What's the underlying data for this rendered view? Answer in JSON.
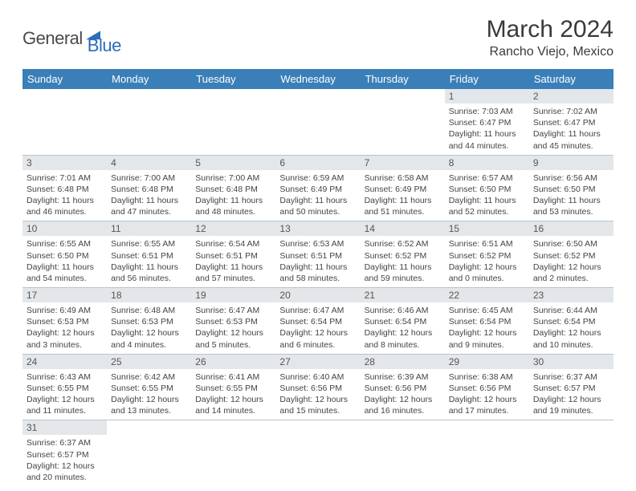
{
  "logo": {
    "word1": "General",
    "word2": "Blue"
  },
  "title": "March 2024",
  "location": "Rancho Viejo, Mexico",
  "colors": {
    "header_bg": "#3b7fb9",
    "header_text": "#ffffff",
    "daynum_bg": "#e4e7ea",
    "row_border": "#b8c4d0",
    "text": "#444444",
    "title_text": "#3a3a3a",
    "logo_dark": "#4a4a4a",
    "logo_blue": "#2a6db8"
  },
  "weekdays": [
    "Sunday",
    "Monday",
    "Tuesday",
    "Wednesday",
    "Thursday",
    "Friday",
    "Saturday"
  ],
  "weeks": [
    [
      null,
      null,
      null,
      null,
      null,
      {
        "d": "1",
        "sr": "7:03 AM",
        "ss": "6:47 PM",
        "dl": "11 hours and 44 minutes."
      },
      {
        "d": "2",
        "sr": "7:02 AM",
        "ss": "6:47 PM",
        "dl": "11 hours and 45 minutes."
      }
    ],
    [
      {
        "d": "3",
        "sr": "7:01 AM",
        "ss": "6:48 PM",
        "dl": "11 hours and 46 minutes."
      },
      {
        "d": "4",
        "sr": "7:00 AM",
        "ss": "6:48 PM",
        "dl": "11 hours and 47 minutes."
      },
      {
        "d": "5",
        "sr": "7:00 AM",
        "ss": "6:48 PM",
        "dl": "11 hours and 48 minutes."
      },
      {
        "d": "6",
        "sr": "6:59 AM",
        "ss": "6:49 PM",
        "dl": "11 hours and 50 minutes."
      },
      {
        "d": "7",
        "sr": "6:58 AM",
        "ss": "6:49 PM",
        "dl": "11 hours and 51 minutes."
      },
      {
        "d": "8",
        "sr": "6:57 AM",
        "ss": "6:50 PM",
        "dl": "11 hours and 52 minutes."
      },
      {
        "d": "9",
        "sr": "6:56 AM",
        "ss": "6:50 PM",
        "dl": "11 hours and 53 minutes."
      }
    ],
    [
      {
        "d": "10",
        "sr": "6:55 AM",
        "ss": "6:50 PM",
        "dl": "11 hours and 54 minutes."
      },
      {
        "d": "11",
        "sr": "6:55 AM",
        "ss": "6:51 PM",
        "dl": "11 hours and 56 minutes."
      },
      {
        "d": "12",
        "sr": "6:54 AM",
        "ss": "6:51 PM",
        "dl": "11 hours and 57 minutes."
      },
      {
        "d": "13",
        "sr": "6:53 AM",
        "ss": "6:51 PM",
        "dl": "11 hours and 58 minutes."
      },
      {
        "d": "14",
        "sr": "6:52 AM",
        "ss": "6:52 PM",
        "dl": "11 hours and 59 minutes."
      },
      {
        "d": "15",
        "sr": "6:51 AM",
        "ss": "6:52 PM",
        "dl": "12 hours and 0 minutes."
      },
      {
        "d": "16",
        "sr": "6:50 AM",
        "ss": "6:52 PM",
        "dl": "12 hours and 2 minutes."
      }
    ],
    [
      {
        "d": "17",
        "sr": "6:49 AM",
        "ss": "6:53 PM",
        "dl": "12 hours and 3 minutes."
      },
      {
        "d": "18",
        "sr": "6:48 AM",
        "ss": "6:53 PM",
        "dl": "12 hours and 4 minutes."
      },
      {
        "d": "19",
        "sr": "6:47 AM",
        "ss": "6:53 PM",
        "dl": "12 hours and 5 minutes."
      },
      {
        "d": "20",
        "sr": "6:47 AM",
        "ss": "6:54 PM",
        "dl": "12 hours and 6 minutes."
      },
      {
        "d": "21",
        "sr": "6:46 AM",
        "ss": "6:54 PM",
        "dl": "12 hours and 8 minutes."
      },
      {
        "d": "22",
        "sr": "6:45 AM",
        "ss": "6:54 PM",
        "dl": "12 hours and 9 minutes."
      },
      {
        "d": "23",
        "sr": "6:44 AM",
        "ss": "6:54 PM",
        "dl": "12 hours and 10 minutes."
      }
    ],
    [
      {
        "d": "24",
        "sr": "6:43 AM",
        "ss": "6:55 PM",
        "dl": "12 hours and 11 minutes."
      },
      {
        "d": "25",
        "sr": "6:42 AM",
        "ss": "6:55 PM",
        "dl": "12 hours and 13 minutes."
      },
      {
        "d": "26",
        "sr": "6:41 AM",
        "ss": "6:55 PM",
        "dl": "12 hours and 14 minutes."
      },
      {
        "d": "27",
        "sr": "6:40 AM",
        "ss": "6:56 PM",
        "dl": "12 hours and 15 minutes."
      },
      {
        "d": "28",
        "sr": "6:39 AM",
        "ss": "6:56 PM",
        "dl": "12 hours and 16 minutes."
      },
      {
        "d": "29",
        "sr": "6:38 AM",
        "ss": "6:56 PM",
        "dl": "12 hours and 17 minutes."
      },
      {
        "d": "30",
        "sr": "6:37 AM",
        "ss": "6:57 PM",
        "dl": "12 hours and 19 minutes."
      }
    ],
    [
      {
        "d": "31",
        "sr": "6:37 AM",
        "ss": "6:57 PM",
        "dl": "12 hours and 20 minutes."
      },
      null,
      null,
      null,
      null,
      null,
      null
    ]
  ],
  "labels": {
    "sunrise": "Sunrise:",
    "sunset": "Sunset:",
    "daylight": "Daylight:"
  }
}
